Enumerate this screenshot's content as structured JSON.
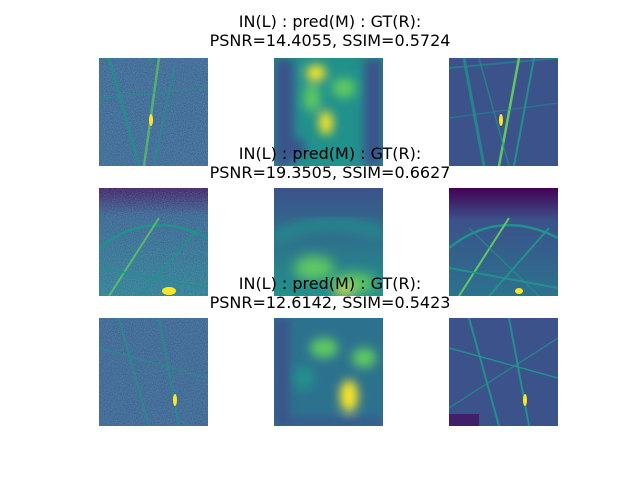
{
  "rows": [
    {
      "title_line1": "IN(L) : pred(M) : GT(R):",
      "title_line2": "PSNR=14.4055, SSIM=0.5724",
      "psnr": 14.4055,
      "ssim": 0.5724
    },
    {
      "title_line1": "IN(L) : pred(M) : GT(R):",
      "title_line2": "PSNR=19.3505, SSIM=0.6627",
      "psnr": 19.3505,
      "ssim": 0.6627
    },
    {
      "title_line1": "IN(L) : pred(M) : GT(R):",
      "title_line2": "PSNR=12.6142, SSIM=0.5423",
      "psnr": 12.6142,
      "ssim": 0.5423
    }
  ],
  "panel_roles": [
    "input",
    "prediction",
    "ground-truth"
  ],
  "colormap": [
    "#440154",
    "#3b528b",
    "#21918c",
    "#5ec962",
    "#fde725"
  ]
}
